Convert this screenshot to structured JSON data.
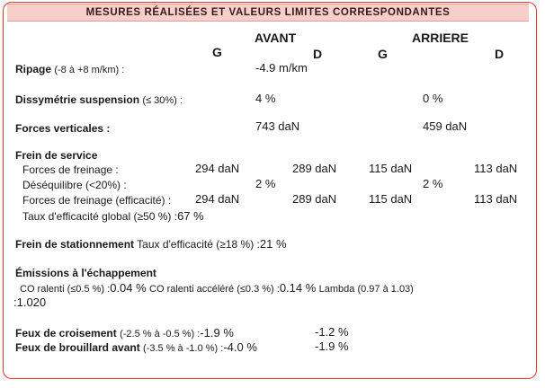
{
  "header": {
    "title": "MESURES RÉALISÉES ET VALEURS LIMITES CORRESPONDANTES"
  },
  "columns": {
    "avant": "AVANT",
    "arriere": "ARRIERE",
    "g1": "G",
    "d1": "D",
    "g2": "G",
    "d2": "D"
  },
  "ripage": {
    "label": "Ripage",
    "range": "(-8 à +8 m/km) :",
    "value": "-4.9 m/km"
  },
  "dissymetrie": {
    "label": "Dissymétrie suspension",
    "range": "(≤ 30%) :",
    "avant": "4 %",
    "arriere": "0 %"
  },
  "forces_verticales": {
    "label": "Forces verticales :",
    "avant": "743 daN",
    "arriere": "459 daN"
  },
  "frein_service": {
    "title": "Frein de service",
    "forces_label": "Forces de freinage :",
    "forces": [
      "294 daN",
      "289 daN",
      "115 daN",
      "113 daN"
    ],
    "deseq_label": "Déséquilibre (<20%) :",
    "deseq_avant": "2 %",
    "deseq_arriere": "2 %",
    "efficacite_label": "Forces de freinage (efficacité) :",
    "efficacite": [
      "294 daN",
      "289 daN",
      "115 daN",
      "113 daN"
    ],
    "taux_label": "Taux d'efficacité global (≥50 %) :",
    "taux_value": "67 %"
  },
  "frein_stationnement": {
    "label": "Frein de stationnement",
    "desc": "Taux d'efficacité (≥18 %) :",
    "value": "21 %"
  },
  "emissions": {
    "title": "Émissions à l'échappement",
    "co_label": "CO ralenti (≤0.5 %) :",
    "co_value": "0.04 %",
    "co_acc_label": "CO ralenti accéléré (≤0.3 %) :",
    "co_acc_value": "0.14 %",
    "lambda_label": "Lambda (0.97 à 1.03)",
    "lambda_value": ":1.020"
  },
  "feux_croisement": {
    "label": "Feux de croisement",
    "range": "(-2.5 % à  -0.5 %) :",
    "value_g": "-1.9 %",
    "value_d": "-1.2 %"
  },
  "feux_brouillard": {
    "label": "Feux de brouillard avant",
    "range": "(-3.5 % à -1.0 %) :",
    "value_g": "-4.0 %",
    "value_d": "-1.9 %"
  }
}
